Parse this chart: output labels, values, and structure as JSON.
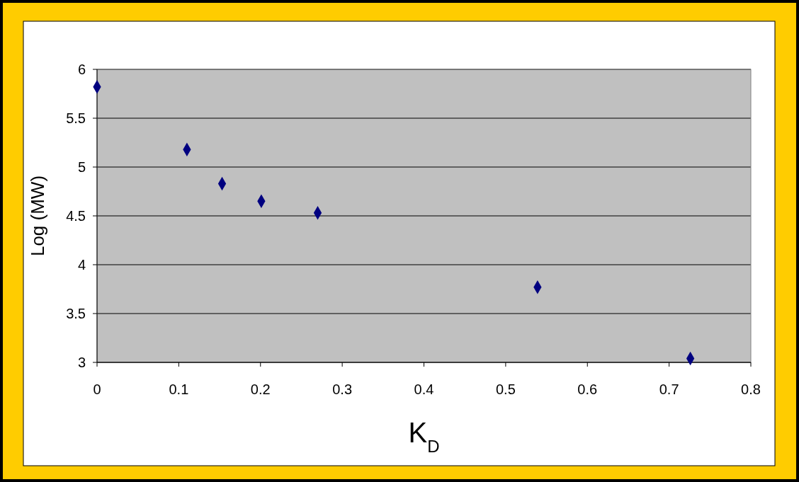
{
  "chart_data": {
    "type": "scatter",
    "xlabel": "K$_{D}$",
    "ylabel": "Log (MW)",
    "x": [
      0,
      0.11,
      0.153,
      0.201,
      0.27,
      0.539,
      0.726
    ],
    "series": [
      {
        "color": "#000080",
        "values": [
          5.82,
          5.18,
          4.83,
          4.65,
          4.53,
          3.77,
          3.04
        ]
      }
    ],
    "xlim": [
      0,
      0.8
    ],
    "xticks": [
      0,
      0.1,
      0.2,
      0.3,
      0.4,
      0.5,
      0.6,
      0.7,
      0.8
    ],
    "ylim": [
      3,
      6
    ],
    "yticks": [
      3,
      3.5,
      4,
      4.5,
      5,
      5.5,
      6
    ],
    "grid": "y",
    "marker": "diamond"
  }
}
